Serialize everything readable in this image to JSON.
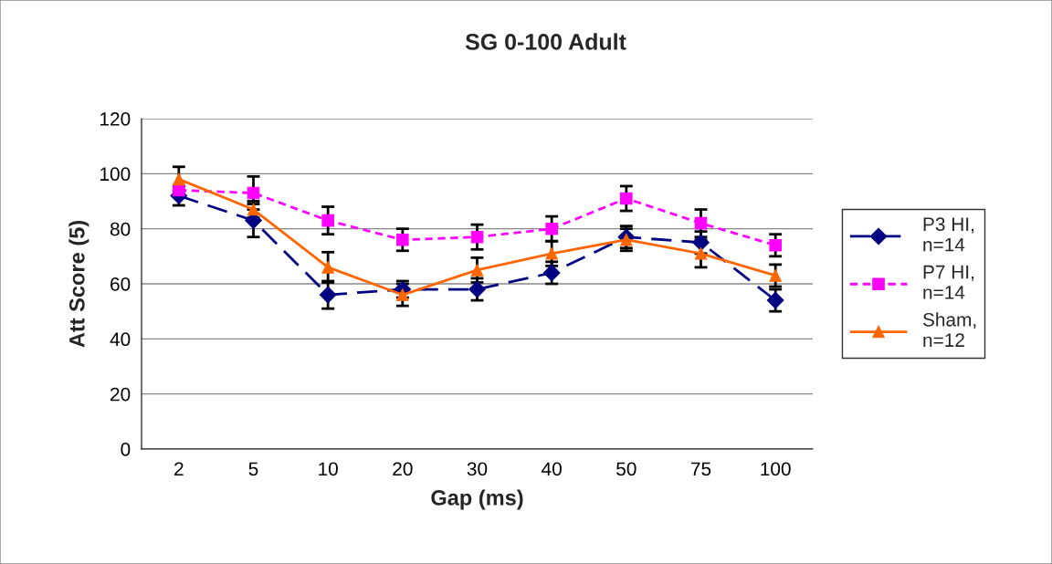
{
  "chart_data": {
    "type": "line",
    "title": "SG 0-100 Adult",
    "xlabel": "Gap (ms)",
    "ylabel": "Att Score (5)",
    "categories": [
      "2",
      "5",
      "10",
      "20",
      "30",
      "40",
      "50",
      "75",
      "100"
    ],
    "ylim": [
      0,
      120
    ],
    "yticks": [
      0,
      20,
      40,
      60,
      80,
      100,
      120
    ],
    "grid": "y",
    "legend": "right",
    "series": [
      {
        "name": "P3 HI,\nn=14",
        "color": "#000080",
        "marker": "diamond",
        "line_style": "dashed",
        "values": [
          92,
          83,
          56,
          58,
          58,
          64,
          77,
          75,
          54
        ],
        "errors": [
          3.5,
          6,
          5,
          3,
          4,
          4,
          4,
          4,
          4
        ]
      },
      {
        "name": "P7 HI,\nn=14",
        "color": "#ff00ff",
        "marker": "square",
        "line_style": "dotted",
        "values": [
          94,
          93,
          83,
          76,
          77,
          80,
          91,
          82,
          74
        ],
        "errors": [
          null,
          6,
          5,
          4,
          4.5,
          4.5,
          4.5,
          5,
          4
        ]
      },
      {
        "name": "Sham,\nn=12",
        "color": "#ff6600",
        "marker": "triangle",
        "line_style": "solid",
        "values": [
          98,
          87,
          66,
          56,
          65,
          71,
          76,
          71,
          63
        ],
        "errors": [
          4.5,
          3,
          5.5,
          4,
          4.5,
          4.5,
          4,
          5,
          4
        ]
      }
    ]
  }
}
